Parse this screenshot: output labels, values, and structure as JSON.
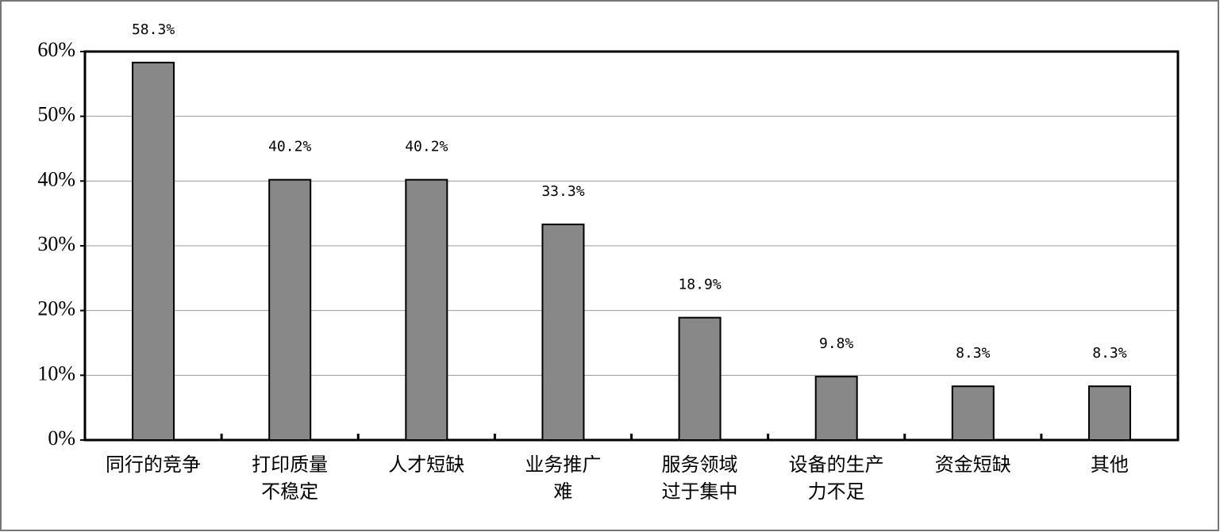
{
  "chart_data": {
    "type": "bar",
    "categories": [
      "同行的竞争",
      "打印质量\n不稳定",
      "人才短缺",
      "业务推广\n难",
      "服务领域\n过于集中",
      "设备的生产\n力不足",
      "资金短缺",
      "其他"
    ],
    "values": [
      58.3,
      40.2,
      40.2,
      33.3,
      18.9,
      9.8,
      8.3,
      8.3
    ],
    "value_labels": [
      "58.3%",
      "40.2%",
      "40.2%",
      "33.3%",
      "18.9%",
      "9.8%",
      "8.3%",
      "8.3%"
    ],
    "color": "#888888",
    "ylim": [
      0,
      60
    ],
    "yticks": [
      {
        "value": 0,
        "label": "0%"
      },
      {
        "value": 10,
        "label": "10%"
      },
      {
        "value": 20,
        "label": "20%"
      },
      {
        "value": 30,
        "label": "30%"
      },
      {
        "value": 40,
        "label": "40%"
      },
      {
        "value": 50,
        "label": "50%"
      },
      {
        "value": 60,
        "label": "60%"
      }
    ],
    "grid": true
  }
}
